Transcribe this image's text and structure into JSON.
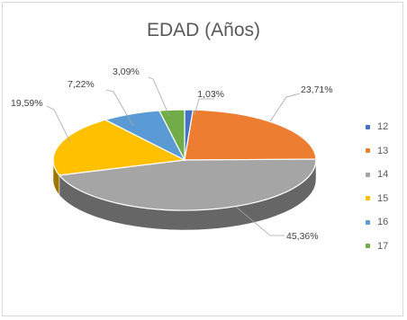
{
  "chart_data": {
    "type": "pie",
    "title": "EDAD (Años)",
    "categories": [
      "12",
      "13",
      "14",
      "15",
      "16",
      "17"
    ],
    "values": [
      1.03,
      23.71,
      45.36,
      19.59,
      7.22,
      3.09
    ],
    "data_labels": [
      "1,03%",
      "23,71%",
      "45,36%",
      "19,59%",
      "7,22%",
      "3,09%"
    ],
    "colors": [
      "#4472C4",
      "#ED7D31",
      "#A5A5A5",
      "#FFC000",
      "#5B9BD5",
      "#70AD47"
    ],
    "legend_position": "right",
    "style": "3d"
  }
}
